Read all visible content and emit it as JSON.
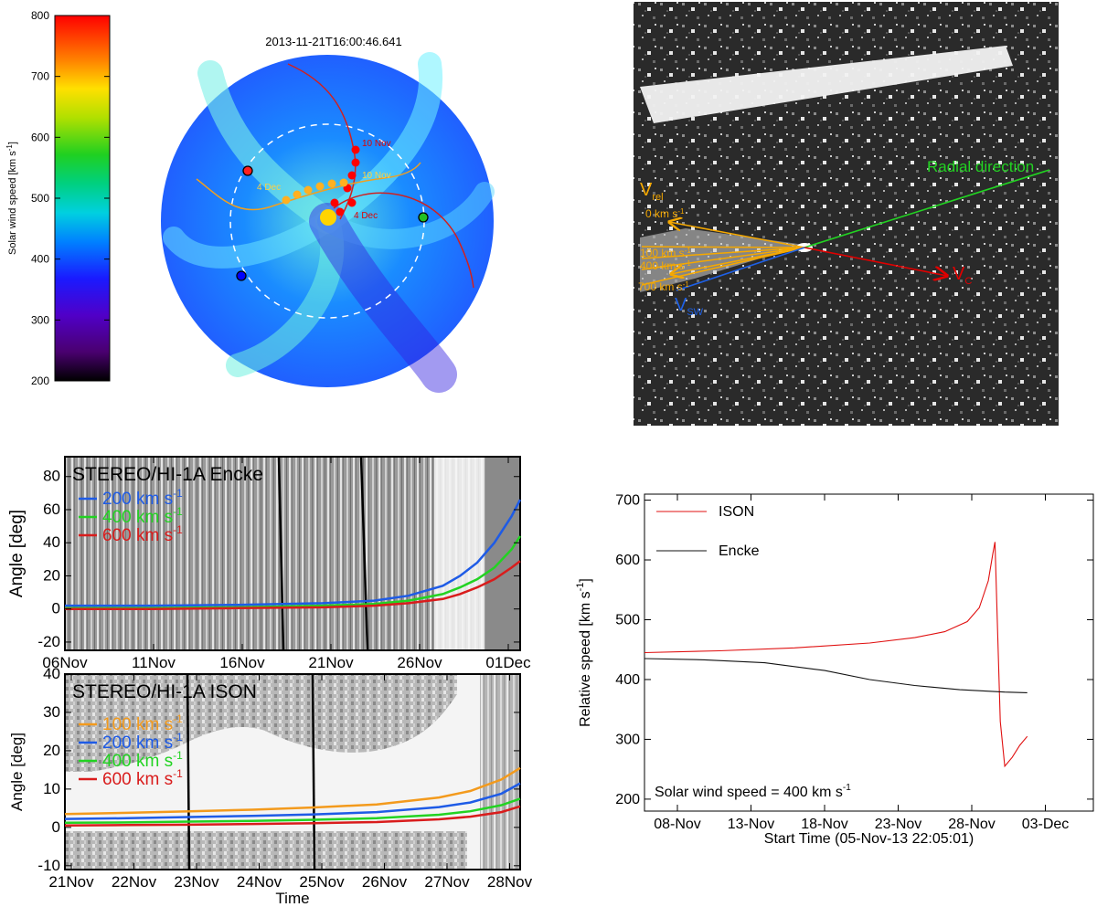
{
  "colorbar": {
    "label": "Solar wind speed [km s",
    "label_sup": "-1",
    "label_end": "]",
    "ticks": [
      "200",
      "300",
      "400",
      "500",
      "600",
      "700",
      "800"
    ]
  },
  "wsa_panel": {
    "timestamp": "2013-11-21T16:00:46.641",
    "orbit_labels": {
      "ison_red_start": "10 Nov",
      "ison_red_end": "4 Dec",
      "ison_orange_start": "10 Nov",
      "ison_orange_end": "4 Dec"
    },
    "colors": {
      "ison_red": "#e00000",
      "ison_orange": "#f5b800",
      "earth": "#22c022",
      "sun": "#ffd400"
    }
  },
  "hi_image": {
    "radial_label": "Radial direction",
    "vrel_label": "V",
    "vrel_sub": "rel",
    "speed_labels": [
      "0 km s",
      "100 km s",
      "400 km s",
      "700 km s"
    ],
    "speed_sup": "-1",
    "vsw_label": "V",
    "vsw_sub": "SW",
    "vc_label": "V",
    "vc_sub": "C"
  },
  "chart_data": [
    {
      "type": "line",
      "title": "STEREO/HI-1A Encke",
      "ylabel": "Angle [deg]",
      "xlabel": "",
      "x_ticks": [
        "06Nov",
        "11Nov",
        "16Nov",
        "21Nov",
        "26Nov",
        "01Dec"
      ],
      "xlim_days": [
        0,
        26.5
      ],
      "ylim": [
        -25,
        92
      ],
      "y_ticks": [
        "-20",
        "0",
        "20",
        "40",
        "60",
        "80"
      ],
      "legend_unit": "km s",
      "legend_sup": "-1",
      "series": [
        {
          "name": "200",
          "color": "#1e5be6",
          "x": [
            0,
            5,
            10,
            15,
            18,
            20,
            22,
            23,
            24,
            25,
            26,
            26.5
          ],
          "y": [
            2,
            2,
            2.5,
            3.5,
            5,
            8,
            14,
            20,
            28,
            40,
            56,
            66
          ]
        },
        {
          "name": "400",
          "color": "#22d322",
          "x": [
            0,
            5,
            10,
            15,
            18,
            20,
            22,
            23,
            24,
            25,
            26,
            26.5
          ],
          "y": [
            0.5,
            0.5,
            1,
            2,
            3,
            5,
            9,
            13,
            18,
            25,
            36,
            44
          ]
        },
        {
          "name": "600",
          "color": "#d91c1c",
          "x": [
            0,
            5,
            10,
            15,
            18,
            20,
            22,
            23,
            24,
            25,
            26,
            26.5
          ],
          "y": [
            0,
            0,
            0.5,
            1,
            2,
            3.5,
            6,
            9,
            13,
            18,
            25,
            29
          ]
        }
      ]
    },
    {
      "type": "line",
      "title": "STEREO/HI-1A ISON",
      "ylabel": "Angle [deg]",
      "xlabel": "Time",
      "x_ticks": [
        "21Nov",
        "22Nov",
        "23Nov",
        "24Nov",
        "25Nov",
        "26Nov",
        "27Nov",
        "28Nov"
      ],
      "xlim_days": [
        0,
        7.3
      ],
      "ylim": [
        -11,
        40
      ],
      "y_ticks": [
        "-10",
        "0",
        "10",
        "20",
        "30",
        "40"
      ],
      "legend_unit": "km s",
      "legend_sup": "-1",
      "series": [
        {
          "name": "100",
          "color": "#f39a1c",
          "x": [
            0,
            1,
            2,
            3,
            4,
            5,
            6,
            6.5,
            7,
            7.3
          ],
          "y": [
            3.5,
            3.8,
            4.2,
            4.6,
            5.2,
            6,
            7.8,
            9.5,
            12.5,
            15.5
          ]
        },
        {
          "name": "200",
          "color": "#1e5be6",
          "x": [
            0,
            1,
            2,
            3,
            4,
            5,
            6,
            6.5,
            7,
            7.3
          ],
          "y": [
            2.2,
            2.4,
            2.7,
            3,
            3.4,
            4,
            5.3,
            6.5,
            8.8,
            11.5
          ]
        },
        {
          "name": "400",
          "color": "#22d322",
          "x": [
            0,
            1,
            2,
            3,
            4,
            5,
            6,
            6.5,
            7,
            7.3
          ],
          "y": [
            1.2,
            1.3,
            1.5,
            1.7,
            2,
            2.4,
            3.3,
            4.2,
            5.8,
            7.5
          ]
        },
        {
          "name": "600",
          "color": "#d91c1c",
          "x": [
            0,
            1,
            2,
            3,
            4,
            5,
            6,
            6.5,
            7,
            7.3
          ],
          "y": [
            0.5,
            0.6,
            0.7,
            0.9,
            1.1,
            1.4,
            2.1,
            2.8,
            4,
            5.5
          ]
        }
      ]
    },
    {
      "type": "line",
      "title": "",
      "ylabel": "Relative speed [km s",
      "ylabel_sup": "-1",
      "ylabel_end": "]",
      "xlabel": "Start Time (05-Nov-13 22:05:01)",
      "x_ticks": [
        "08-Nov",
        "13-Nov",
        "18-Nov",
        "23-Nov",
        "28-Nov",
        "03-Dec"
      ],
      "xlim_days": [
        0,
        29.9
      ],
      "ylim": [
        180,
        710
      ],
      "y_ticks": [
        "200",
        "300",
        "400",
        "500",
        "600",
        "700"
      ],
      "annotation": "Solar wind speed = 400 km s",
      "annotation_sup": "-1",
      "series": [
        {
          "name": "ISON",
          "color": "#e01010",
          "x": [
            0,
            5,
            10,
            15,
            18,
            20,
            21.5,
            22.3,
            22.9,
            23.2,
            23.35,
            23.5,
            23.7,
            24,
            24.5,
            25,
            25.5
          ],
          "y": [
            445,
            448,
            453,
            461,
            470,
            480,
            497,
            520,
            565,
            610,
            630,
            500,
            330,
            255,
            270,
            290,
            305
          ]
        },
        {
          "name": "Encke",
          "color": "#111111",
          "x": [
            0,
            4,
            8,
            12,
            15,
            18,
            21,
            24,
            25.5
          ],
          "y": [
            435,
            433,
            428,
            415,
            400,
            390,
            383,
            379,
            378
          ]
        }
      ]
    }
  ]
}
